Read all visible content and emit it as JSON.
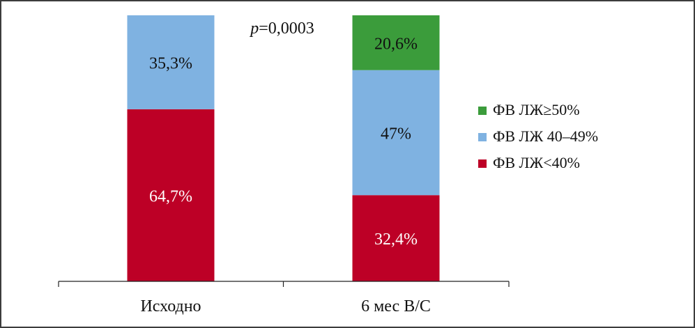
{
  "chart_data": {
    "type": "bar",
    "stacked": true,
    "percent": true,
    "categories": [
      "Исходно",
      "6 мес В/С"
    ],
    "series": [
      {
        "name": "ФВ ЛЖ<40%",
        "values": [
          64.7,
          32.4
        ],
        "labels": [
          "64,7%",
          "32,4%"
        ],
        "color": "#bd0026"
      },
      {
        "name": "ФВ ЛЖ 40–49%",
        "values": [
          35.3,
          47.0
        ],
        "labels": [
          "35,3%",
          "47%"
        ],
        "color": "#7fb2e1"
      },
      {
        "name": "ФВ ЛЖ≥50%",
        "values": [
          0,
          20.6
        ],
        "labels": [
          "",
          "20,6%"
        ],
        "color": "#3b9c3b"
      }
    ],
    "ylim": [
      0,
      100
    ],
    "annotation": {
      "italic": "p",
      "rest": "=0,0003"
    },
    "legend_position": "right"
  }
}
